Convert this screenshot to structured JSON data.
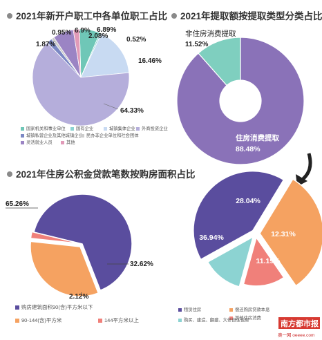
{
  "colors": {
    "purple_dark": "#5a4d9e",
    "purple": "#8a72b8",
    "lilac": "#b5aedb",
    "light_blue": "#c8daf2",
    "mint": "#6fc7b7",
    "teal": "#8cd3d2",
    "orange": "#f5a261",
    "salmon": "#f0807a",
    "grey": "#cccccc",
    "pink": "#e19ab8",
    "bullet": "#8a8a8a",
    "brand_red": "#d73a32"
  },
  "chart_data": [
    {
      "id": "employer_types",
      "type": "pie",
      "title": "2021年新开户职工中各单位职工占比",
      "slices": [
        {
          "label": "国家机关和事业单位",
          "value": 6.89,
          "value_label": "6.89%",
          "color": "#6fc7b7"
        },
        {
          "label": "国有企业",
          "value": 0.52,
          "value_label": "0.52%",
          "color": "#8cd3d2"
        },
        {
          "label": "城镇集体企业",
          "value": 16.46,
          "value_label": "16.46%",
          "color": "#c8daf2"
        },
        {
          "label": "外商投资企业",
          "value": 64.33,
          "value_label": "64.33%",
          "color": "#b5aedb"
        },
        {
          "label": "城镇私营企业及其他城镇企业",
          "value": 1.87,
          "value_label": "1.87%",
          "color": "#7b88c4"
        },
        {
          "label": "民办非企业单位和社会团体",
          "value": 0.95,
          "value_label": "0.95%",
          "color": "#cccccc"
        },
        {
          "label": "灵活就业人员",
          "value": 6.9,
          "value_label": "6.9%",
          "color": "#9b84c4"
        },
        {
          "label": "其他",
          "value": 2.08,
          "value_label": "2.08%",
          "color": "#e19ab8"
        }
      ],
      "legend": [
        "国家机关和事业单位",
        "国有企业",
        "城镇集体企业",
        "外商投资企业",
        "城镇私营企业及其他城镇企业",
        "民办非企业单位和社会团体",
        "灵活就业人员",
        "其他"
      ]
    },
    {
      "id": "withdrawal_types",
      "type": "pie",
      "title": "2021年提取额按提取类型分类占比",
      "slices": [
        {
          "label": "住房消费提取",
          "value": 88.48,
          "value_label": "88.48%",
          "color": "#8a72b8"
        },
        {
          "label": "非住房消费提取",
          "value": 11.52,
          "value_label": "11.52%",
          "color": "#7fcfbf"
        }
      ]
    },
    {
      "id": "housing_consumption_breakdown",
      "type": "pie",
      "slices": [
        {
          "label": "租赁住房",
          "value": 36.94,
          "value_label": "36.94%",
          "color": "#5a4d9e"
        },
        {
          "label": "偿还购房贷款本息",
          "value": 28.04,
          "value_label": "28.04%",
          "color": "#f5a261"
        },
        {
          "label": "其他住房消费",
          "value": 12.31,
          "value_label": "12.31%",
          "color": "#f0807a"
        },
        {
          "label": "购买、建造、翻建、大修自住住房",
          "value": 11.19,
          "value_label": "11.19%",
          "color": "#8cd3d2"
        }
      ],
      "legend": [
        "租赁住房",
        "偿还购房贷款本息",
        "其他住房消费",
        "购买、建造、翻建、大修自住住房"
      ]
    },
    {
      "id": "loan_area",
      "type": "pie",
      "title": "2021年住房公积金贷款笔数按购房面积占比",
      "slices": [
        {
          "label": "购房建筑面积90(含)平方米以下",
          "value": 65.26,
          "value_label": "65.26%",
          "color": "#5a4d9e"
        },
        {
          "label": "90-144(含)平方米",
          "value": 32.62,
          "value_label": "32.62%",
          "color": "#f5a261"
        },
        {
          "label": "144平方米以上",
          "value": 2.12,
          "value_label": "2.12%",
          "color": "#f0807a"
        }
      ],
      "legend": [
        "购房建筑面积90(含)平方米以下",
        "90-144(含)平方米",
        "144平方米以上"
      ]
    }
  ],
  "watermark": {
    "brand": "南方都市报",
    "site": "奥一网 oeeee.com"
  }
}
